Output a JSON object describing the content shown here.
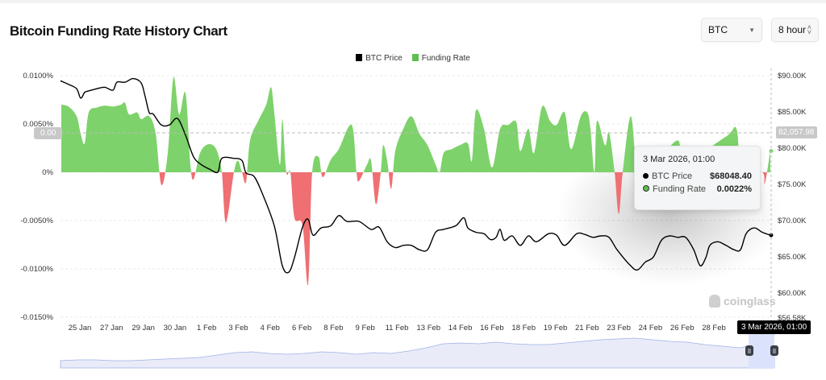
{
  "header": {
    "title": "Bitcoin Funding Rate History Chart"
  },
  "controls": {
    "coin": {
      "value": "BTC",
      "icon": "caret-down-icon"
    },
    "interval": {
      "value": "8 hour",
      "icon": "up-down-chevron-icon"
    }
  },
  "colors": {
    "price": "#000000",
    "funding_positive": "#7ed26b",
    "funding_negative": "#ef6f72",
    "navigator": "#9fb0e8"
  },
  "tooltip": {
    "title": "3 Mar 2026, 01:00",
    "rows": [
      {
        "label": "BTC Price",
        "value": "$68048.40"
      },
      {
        "label": "Funding Rate",
        "value": "0.0022%"
      }
    ]
  },
  "crosshair": {
    "x_label": "3 Mar 2026, 01:00",
    "price_label": "82,057.98",
    "rate_label": "0.00"
  },
  "watermark": "coinglass",
  "chart_data": {
    "type": "line",
    "legend": [
      "BTC Price",
      "Funding Rate"
    ],
    "legend_position": "top",
    "grid": true,
    "x_ticks": [
      "25 Jan",
      "27 Jan",
      "29 Jan",
      "30 Jan",
      "1 Feb",
      "3 Feb",
      "4 Feb",
      "6 Feb",
      "8 Feb",
      "9 Feb",
      "11 Feb",
      "13 Feb",
      "14 Feb",
      "16 Feb",
      "18 Feb",
      "19 Feb",
      "21 Feb",
      "23 Feb",
      "24 Feb",
      "26 Feb",
      "28 Feb"
    ],
    "left_axis": {
      "ticks": [
        "0.0100%",
        "0.0050%",
        "0%",
        "-0.0050%",
        "-0.0100%",
        "-0.0150%"
      ],
      "range": [
        -0.015,
        0.01
      ]
    },
    "right_axis": {
      "ticks": [
        "$90.00K",
        "$85.00K",
        "$80.00K",
        "$75.00K",
        "$70.00K",
        "$65.00K",
        "$60.00K",
        "$56.58K"
      ],
      "range": [
        56580,
        90000
      ]
    },
    "series": [
      {
        "name": "Funding Rate",
        "unit": "%",
        "values": [
          0.007,
          0.0068,
          0.0058,
          0.004,
          0.003,
          0.0062,
          0.0067,
          0.0069,
          0.0068,
          0.007,
          0.0072,
          0.006,
          0.0062,
          0.0055,
          0.0058,
          0.004,
          -0.0013,
          0.002,
          0.0098,
          0.006,
          0.0082,
          0.0008,
          -0.0007,
          0.002,
          0.0029,
          0.0024,
          0,
          -0.0052,
          0,
          0.0012,
          0,
          -0.001,
          0.0033,
          0.0053,
          0.007,
          0.0088,
          0.0062,
          0.0008,
          0.0055,
          0,
          0,
          -0.0047,
          -0.0055,
          -0.0116,
          0,
          0.0016,
          -0.0005,
          0.0013,
          0.0024,
          0.0049,
          0,
          -0.0009,
          0.0008,
          0.0012,
          -0.0033,
          0,
          0.0028,
          0.0012,
          -0.0017,
          0.0022,
          0.0045,
          0.0058,
          0.004,
          0.0028,
          0.0008,
          0,
          0.002,
          0.0024,
          0.0028,
          0.003,
          0.0012,
          0.0064,
          0.0045,
          0.0005,
          0.0045,
          0.0049,
          0.0052,
          0.0022,
          0.0045,
          0.002,
          0.0068,
          0.0053,
          0.0049,
          0.0062,
          0.0024,
          0.0058,
          0.0062,
          0.0045,
          0,
          0.0053,
          0.0028,
          0.0041,
          0,
          -0.0043,
          0,
          0.0058,
          0,
          0.0016,
          0.002,
          0.0012,
          0.0033,
          0.0012,
          0.0037,
          0.0045,
          0,
          0,
          -0.0012,
          0.0022
        ]
      },
      {
        "name": "BTC Price",
        "unit": "USD",
        "values": [
          89300,
          88800,
          88200,
          86900,
          87700,
          87900,
          88200,
          88400,
          88000,
          89100,
          89100,
          89600,
          89000,
          87100,
          84900,
          84700,
          83200,
          83200,
          84100,
          81800,
          78800,
          77700,
          77100,
          76700,
          78600,
          78600,
          78300,
          76600,
          76100,
          73800,
          69300,
          63800,
          62900,
          64900,
          69100,
          70200,
          68000,
          69000,
          69300,
          70700,
          69900,
          69900,
          68800,
          69100,
          67100,
          66300,
          66600,
          66600,
          66000,
          66000,
          68400,
          68800,
          69300,
          70400,
          69000,
          68400,
          68200,
          67400,
          67700,
          68800,
          67300,
          67900,
          66600,
          67900,
          67100,
          68200,
          68000,
          66600,
          68200,
          68100,
          67700,
          67900,
          67700,
          66000,
          64000,
          63200,
          64300,
          65000,
          67300,
          67900,
          67700,
          67700,
          66000,
          63800,
          64900,
          66600,
          67100,
          66600,
          66000,
          66000,
          68200,
          69000,
          68400,
          68000
        ]
      }
    ]
  }
}
